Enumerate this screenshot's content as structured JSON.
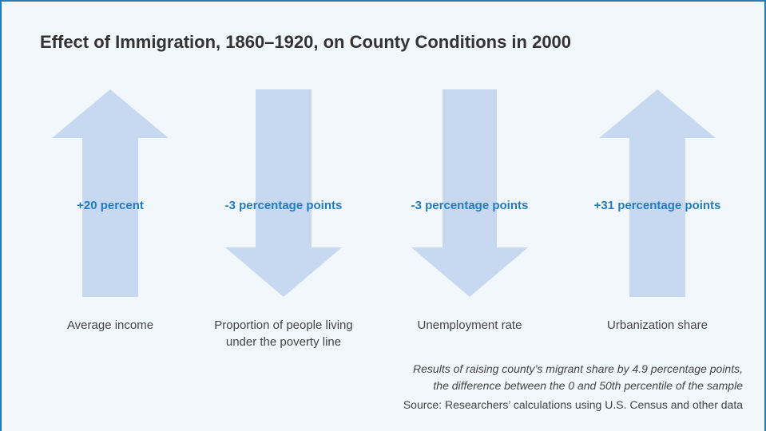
{
  "title": "Effect of Immigration, 1860–1920, on County Conditions in 2000",
  "items": [
    {
      "effect": "+20 percent",
      "label": [
        "Average income"
      ]
    },
    {
      "effect": "-3 percentage points",
      "label": [
        "Proportion of people living",
        "under the poverty line"
      ]
    },
    {
      "effect": "-3 percentage points",
      "label": [
        "Unemployment rate"
      ]
    },
    {
      "effect": "+31 percentage points",
      "label": [
        "Urbanization share"
      ]
    }
  ],
  "note": [
    "Results of raising county’s migrant share by 4.9 percentage points,",
    "the difference between the 0 and 50th percentile of the sample"
  ],
  "source": "Source: Researchers’ calculations using U.S. Census and other data"
}
